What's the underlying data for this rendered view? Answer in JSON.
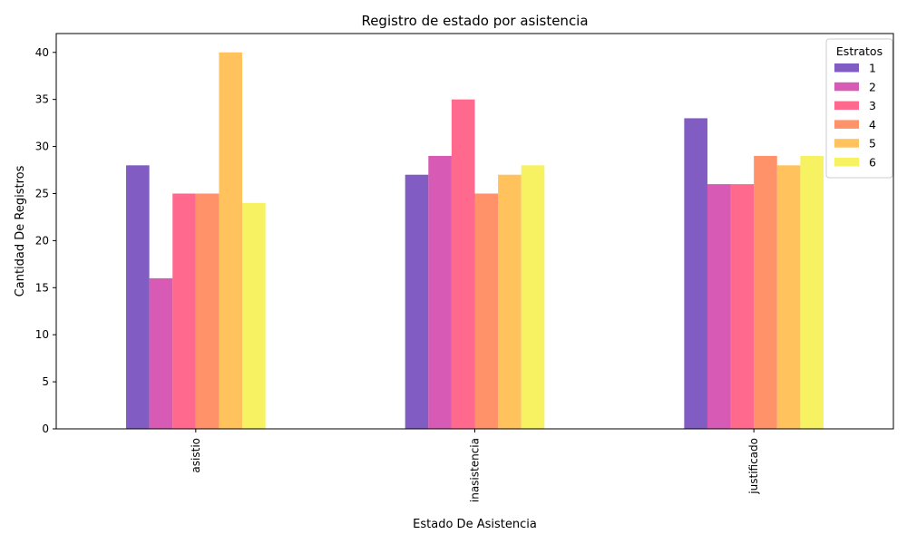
{
  "chart_data": {
    "type": "bar",
    "title": "Registro de estado por asistencia",
    "xlabel": "Estado De Asistencia",
    "ylabel": "Cantidad De Registros",
    "categories": [
      "asistio",
      "inasistencia",
      "justificado"
    ],
    "ylim": [
      0,
      42
    ],
    "yticks": [
      0,
      5,
      10,
      15,
      20,
      25,
      30,
      35,
      40
    ],
    "grid": false,
    "legend": {
      "title": "Estratos",
      "placement": "top-right"
    },
    "series": [
      {
        "name": "1",
        "color": "#6a3fb8",
        "values": [
          28,
          27,
          33
        ]
      },
      {
        "name": "2",
        "color": "#d03ea8",
        "values": [
          16,
          29,
          26
        ]
      },
      {
        "name": "3",
        "color": "#ff4f7a",
        "values": [
          25,
          35,
          26
        ]
      },
      {
        "name": "4",
        "color": "#ff7f4f",
        "values": [
          25,
          25,
          29
        ]
      },
      {
        "name": "5",
        "color": "#ffb73f",
        "values": [
          40,
          27,
          28
        ]
      },
      {
        "name": "6",
        "color": "#f5f045",
        "values": [
          24,
          28,
          29
        ]
      }
    ],
    "bar_opacity": 0.85
  }
}
